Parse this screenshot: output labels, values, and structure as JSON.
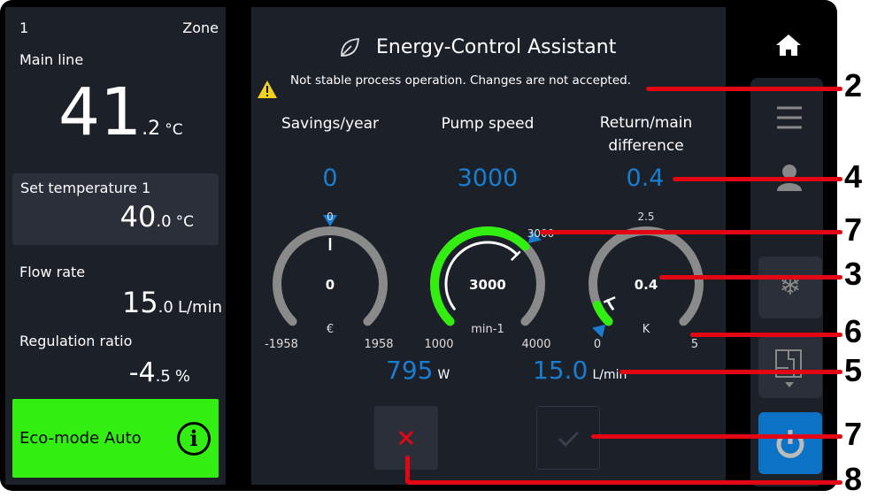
{
  "left": {
    "zone_number": "1",
    "zone_label": "Zone",
    "main_line_label": "Main line",
    "main_temp_int": "41",
    "main_temp_dec": ".2",
    "main_temp_unit": "°C",
    "set_temp_label": "Set temperature 1",
    "set_temp_int": "40",
    "set_temp_dec": ".0",
    "set_temp_unit": "°C",
    "flow_label": "Flow rate",
    "flow_int": "15",
    "flow_dec": ".0",
    "flow_unit": "L/min",
    "reg_label": "Regulation ratio",
    "reg_int": "-4",
    "reg_dec": ".5",
    "reg_unit": "%",
    "eco_label": "Eco-mode Auto",
    "eco_color": "#33ee11"
  },
  "center": {
    "title": "Energy-Control Assistant",
    "warning": "Not stable process operation. Changes are not accepted.",
    "col1_label": "Savings/year",
    "col2_label": "Pump speed",
    "col3_label": "Return/main difference",
    "col1_value": "0",
    "col2_value": "3000",
    "col3_value": "0.4",
    "gauges": [
      {
        "value": 0,
        "center_text": "0",
        "unit": "€",
        "min": -1958,
        "max": 1958,
        "min_label": "-1958",
        "max_label": "1958",
        "setpoint": 0,
        "top_label": "0",
        "green_to": null
      },
      {
        "value": 3000,
        "center_text": "3000",
        "unit": "min-1",
        "min": 1000,
        "max": 4000,
        "min_label": "1000",
        "max_label": "4000",
        "setpoint": 3000,
        "top_label": "3000",
        "green_to": 3000
      },
      {
        "value": 0.4,
        "center_text": "0.4",
        "unit": "K",
        "min": 0,
        "max": 5,
        "min_label": "0",
        "max_label": "5",
        "setpoint": -0.3,
        "top_label": "2.5",
        "green_to": 0.4
      }
    ],
    "power_value": "795",
    "power_unit": "W",
    "flow_value": "15.0",
    "flow_unit": "L/min"
  },
  "annotations": [
    "2",
    "4",
    "7",
    "3",
    "6",
    "5",
    "7",
    "8"
  ],
  "colors": {
    "accent": "#1a7ed0",
    "green": "#33ee11",
    "panel": "#1c2029",
    "annotation": "#e30613"
  }
}
